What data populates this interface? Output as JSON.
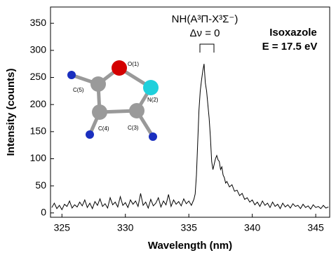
{
  "chart_data": {
    "type": "line",
    "x_label": "Wavelength (nm)",
    "y_label": "Intensity (counts)",
    "annotations": [
      "NH(A³Π-X³Σ⁻)",
      "Δν = 0",
      "Isoxazole",
      "E = 17.5 eV"
    ],
    "inset_labels": [
      "O(1)",
      "N(2)",
      "C(3)",
      "C(4)",
      "C(5)"
    ],
    "xlim": [
      324.1,
      346.1
    ],
    "xticks": [
      325,
      330,
      335,
      340,
      345
    ],
    "ylim": [
      -8,
      380
    ],
    "yticks": [
      0,
      50,
      100,
      150,
      200,
      250,
      300,
      350
    ],
    "x": [
      324.2,
      324.4,
      324.6,
      324.8,
      325.0,
      325.2,
      325.4,
      325.6,
      325.8,
      326.0,
      326.2,
      326.4,
      326.6,
      326.8,
      327.0,
      327.2,
      327.4,
      327.6,
      327.8,
      328.0,
      328.2,
      328.4,
      328.6,
      328.8,
      329.0,
      329.2,
      329.4,
      329.6,
      329.8,
      330.0,
      330.2,
      330.4,
      330.6,
      330.8,
      331.0,
      331.2,
      331.4,
      331.6,
      331.8,
      332.0,
      332.2,
      332.4,
      332.6,
      332.8,
      333.0,
      333.2,
      333.4,
      333.6,
      333.8,
      334.0,
      334.2,
      334.4,
      334.6,
      334.8,
      335.0,
      335.2,
      335.4,
      335.5,
      335.6,
      335.7,
      335.8,
      335.9,
      336.0,
      336.1,
      336.2,
      336.3,
      336.4,
      336.5,
      336.6,
      336.7,
      336.8,
      336.9,
      337.0,
      337.1,
      337.2,
      337.3,
      337.4,
      337.5,
      337.6,
      337.7,
      337.8,
      337.9,
      338.0,
      338.2,
      338.4,
      338.6,
      338.8,
      339.0,
      339.2,
      339.4,
      339.6,
      339.8,
      340.0,
      340.2,
      340.4,
      340.6,
      340.8,
      341.0,
      341.2,
      341.4,
      341.6,
      341.8,
      342.0,
      342.2,
      342.4,
      342.6,
      342.8,
      343.0,
      343.2,
      343.4,
      343.6,
      343.8,
      344.0,
      344.2,
      344.4,
      344.6,
      344.8,
      345.0,
      345.2,
      345.4,
      345.6,
      345.8,
      346.0
    ],
    "series": [
      {
        "color": "#000000",
        "values": [
          10,
          18,
          8,
          14,
          6,
          16,
          12,
          22,
          9,
          15,
          11,
          20,
          13,
          24,
          10,
          18,
          8,
          21,
          14,
          26,
          12,
          17,
          9,
          28,
          15,
          20,
          11,
          30,
          14,
          19,
          10,
          24,
          16,
          22,
          12,
          36,
          14,
          20,
          9,
          25,
          13,
          18,
          28,
          11,
          22,
          15,
          34,
          12,
          24,
          16,
          21,
          13,
          26,
          17,
          22,
          14,
          25,
          35,
          70,
          130,
          190,
          225,
          245,
          262,
          275,
          240,
          225,
          200,
          175,
          140,
          95,
          80,
          90,
          100,
          106,
          98,
          95,
          80,
          85,
          70,
          65,
          55,
          58,
          48,
          52,
          40,
          42,
          32,
          36,
          25,
          28,
          20,
          24,
          15,
          20,
          12,
          22,
          14,
          18,
          10,
          20,
          12,
          16,
          8,
          18,
          11,
          15,
          9,
          17,
          12,
          14,
          8,
          16,
          10,
          13,
          7,
          15,
          10,
          12,
          8,
          14,
          9,
          11
        ]
      }
    ]
  }
}
